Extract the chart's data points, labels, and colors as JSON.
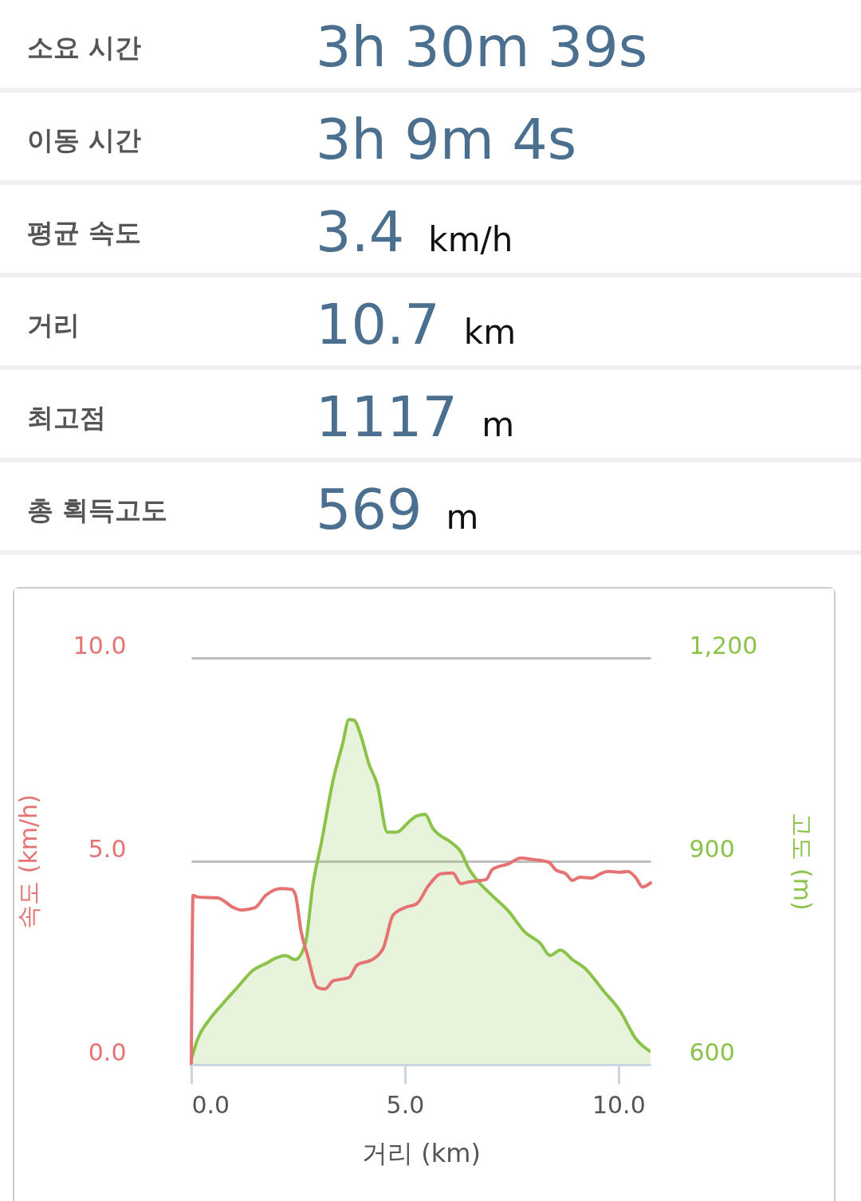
{
  "chart_data": [
    {
      "type": "other",
      "categories": [
        "소요 시간",
        "이동 시간",
        "평균 속도",
        "거리",
        "최고점",
        "총 획득고도"
      ],
      "annotations": [
        "3h 30m 39s",
        "3h 9m 4s",
        "3.4 km/h",
        "10.7 km",
        "1117 m",
        "569 m"
      ]
    },
    {
      "type": "line",
      "xlabel": "거리 (km)",
      "ylabel": "속도 (km/h)",
      "y2label": "고도 (m)",
      "xlim": [
        0,
        10.75
      ],
      "xticks": [
        {
          "value": 0,
          "label": "0.0"
        },
        {
          "value": 5,
          "label": "5.0"
        },
        {
          "value": 10,
          "label": "10.0"
        }
      ],
      "ylim": [
        0,
        10
      ],
      "yticks": [
        {
          "value": 0,
          "label": "0.0"
        },
        {
          "value": 5,
          "label": "5.0"
        },
        {
          "value": 10,
          "label": "10.0"
        }
      ],
      "y2lim": [
        600,
        1200
      ],
      "y2ticks": [
        600,
        900,
        {
          "value": 1200,
          "label": "1,200"
        }
      ],
      "grid": "y",
      "series": [
        {
          "type": "area",
          "axis": "y2",
          "color": "#8bc34a",
          "x": [
            0,
            0.15,
            0.43,
            0.71,
            1.08,
            1.46,
            1.74,
            2.01,
            2.2,
            2.43,
            2.67,
            2.85,
            3.04,
            3.32,
            3.54,
            3.69,
            3.81,
            3.97,
            4.16,
            4.35,
            4.59,
            4.81,
            5.09,
            5.28,
            5.47,
            5.65,
            6.12,
            6.31,
            6.49,
            6.68,
            7.05,
            7.43,
            7.8,
            8.17,
            8.4,
            8.64,
            8.92,
            9.2,
            9.66,
            10.04,
            10.41,
            10.75
          ],
          "values": [
            608,
            638,
            667,
            688,
            714,
            740,
            749,
            758,
            761,
            755,
            779,
            867,
            926,
            1020,
            1073,
            1109,
            1108,
            1085,
            1043,
            1014,
            943,
            943,
            958,
            967,
            969,
            949,
            926,
            914,
            890,
            873,
            849,
            826,
            796,
            779,
            761,
            769,
            755,
            743,
            708,
            679,
            638,
            619
          ]
        },
        {
          "type": "line",
          "color": "#e57373",
          "x": [
            0,
            0.04,
            0.15,
            0.62,
            0.99,
            1.18,
            1.49,
            1.74,
            2.11,
            2.35,
            2.44,
            2.57,
            2.72,
            2.95,
            3.13,
            3.32,
            3.69,
            3.88,
            4.25,
            4.5,
            4.72,
            5.0,
            5.28,
            5.56,
            5.84,
            6.12,
            6.31,
            6.49,
            6.77,
            6.9,
            7.05,
            7.43,
            7.71,
            8.02,
            8.36,
            8.54,
            8.77,
            8.92,
            9.1,
            9.38,
            9.57,
            9.76,
            10.04,
            10.22,
            10.41,
            10.56,
            10.75
          ],
          "values": [
            0,
            4.16,
            4.12,
            4.1,
            3.86,
            3.8,
            3.86,
            4.16,
            4.33,
            4.31,
            4.16,
            3.27,
            2.69,
            1.9,
            1.86,
            2.06,
            2.14,
            2.45,
            2.59,
            2.88,
            3.67,
            3.86,
            3.96,
            4.41,
            4.69,
            4.71,
            4.45,
            4.49,
            4.53,
            4.55,
            4.8,
            4.94,
            5.08,
            5.04,
            4.98,
            4.78,
            4.69,
            4.53,
            4.61,
            4.59,
            4.69,
            4.75,
            4.73,
            4.75,
            4.59,
            4.37,
            4.47
          ]
        }
      ]
    }
  ]
}
